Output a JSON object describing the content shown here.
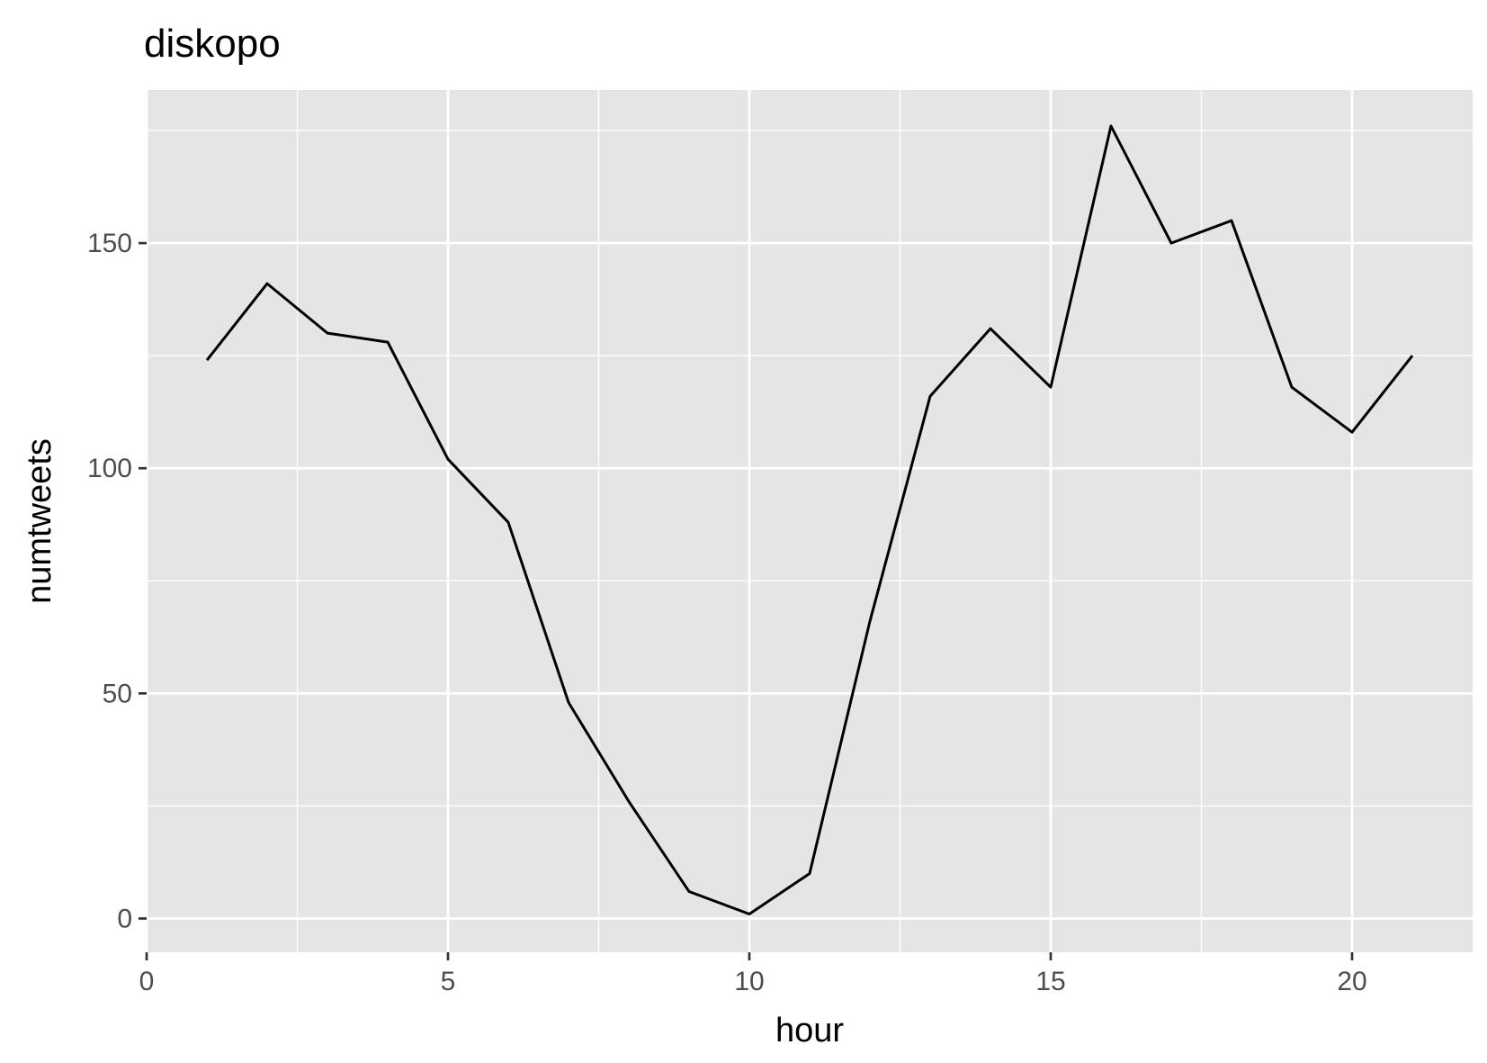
{
  "chart_data": {
    "type": "line",
    "title": "diskopo",
    "xlabel": "hour",
    "ylabel": "numtweets",
    "xlim": [
      0,
      22
    ],
    "ylim": [
      -7.5,
      184
    ],
    "x_ticks": [
      0,
      5,
      10,
      15,
      20
    ],
    "y_ticks": [
      0,
      50,
      100,
      150
    ],
    "x_minor": [
      2.5,
      7.5,
      12.5,
      17.5
    ],
    "y_minor": [
      25,
      75,
      125,
      175
    ],
    "grid": true,
    "background": "#e5e5e5",
    "gridColor": "#ffffff",
    "lineColor": "#000000",
    "x": [
      1,
      2,
      3,
      4,
      5,
      6,
      7,
      8,
      9,
      10,
      11,
      12,
      13,
      14,
      15,
      16,
      17,
      18,
      19,
      20,
      21
    ],
    "y": [
      124,
      141,
      130,
      128,
      102,
      88,
      48,
      26,
      6,
      1,
      10,
      66,
      116,
      131,
      118,
      176,
      150,
      155,
      118,
      108,
      125
    ]
  }
}
